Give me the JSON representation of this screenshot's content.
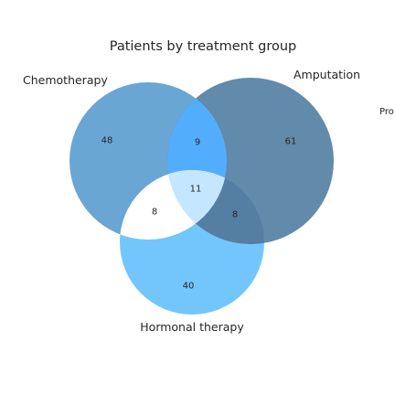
{
  "chart_data": {
    "type": "venn3",
    "title": "Patients by treatment group",
    "sets": [
      {
        "name": "Chemotherapy",
        "color": "#4f97cc"
      },
      {
        "name": "Amputation",
        "color": "#46759b"
      },
      {
        "name": "Hormonal therapy",
        "color": "#5bbcfc"
      }
    ],
    "regions": [
      {
        "sets": [
          "Chemotherapy"
        ],
        "value": 48
      },
      {
        "sets": [
          "Amputation"
        ],
        "value": 61
      },
      {
        "sets": [
          "Hormonal therapy"
        ],
        "value": 40
      },
      {
        "sets": [
          "Chemotherapy",
          "Amputation"
        ],
        "value": 9
      },
      {
        "sets": [
          "Chemotherapy",
          "Hormonal therapy"
        ],
        "value": 8
      },
      {
        "sets": [
          "Amputation",
          "Hormonal therapy"
        ],
        "value": 8
      },
      {
        "sets": [
          "Chemotherapy",
          "Amputation",
          "Hormonal therapy"
        ],
        "value": 11
      }
    ],
    "region_colors": {
      "chemo_amputation": "#52aefc",
      "chemo_hormonal": "#ffffff",
      "all_three": "#c5e6ff",
      "amputation_hormonal": "#557ea3"
    },
    "extra_label": "Pro"
  }
}
